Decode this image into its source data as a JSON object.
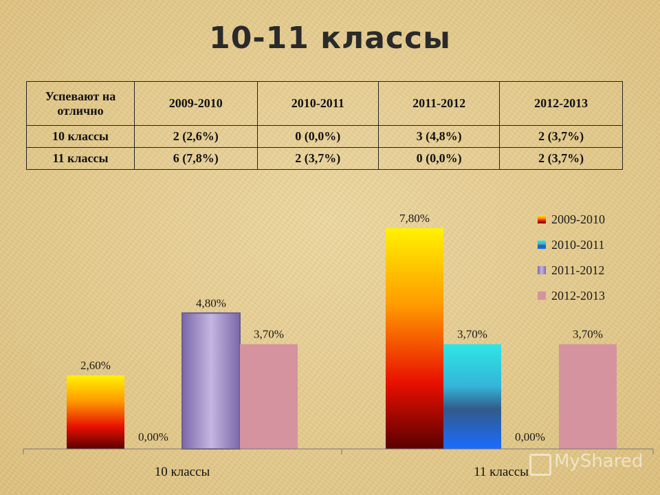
{
  "title": "10-11 классы",
  "table": {
    "header": [
      "Успевают на отлично",
      "2009-2010",
      "2010-2011",
      "2011-2012",
      "2012-2013"
    ],
    "rows": [
      [
        "10 классы",
        "2 (2,6%)",
        "0 (0,0%)",
        "3 (4,8%)",
        "2 (3,7%)"
      ],
      [
        "11 классы",
        "6 (7,8%)",
        "2 (3,7%)",
        "0 (0,0%)",
        "2 (3,7%)"
      ]
    ]
  },
  "chart_data": {
    "type": "bar",
    "categories": [
      "10 классы",
      "11 классы"
    ],
    "series": [
      {
        "name": "2009-2010",
        "values": [
          2.6,
          7.8
        ],
        "labels": [
          "2,60%",
          "7,80%"
        ],
        "color": "#ff8a00"
      },
      {
        "name": "2010-2011",
        "values": [
          0.0,
          3.7
        ],
        "labels": [
          "0,00%",
          "3,70%"
        ],
        "color": "#1e9fe0"
      },
      {
        "name": "2011-2012",
        "values": [
          4.8,
          0.0
        ],
        "labels": [
          "4,80%",
          "0,00%"
        ],
        "color": "#9b88c8"
      },
      {
        "name": "2012-2013",
        "values": [
          3.7,
          3.7
        ],
        "labels": [
          "3,70%",
          "3,70%"
        ],
        "color": "#d4939f"
      }
    ],
    "ylim": [
      0,
      8.5
    ],
    "legend": "top-right",
    "grid": false
  },
  "watermark": "MyShared"
}
